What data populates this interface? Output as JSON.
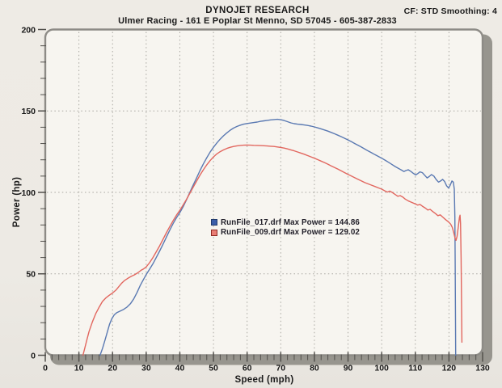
{
  "header": {
    "title": "DYNOJET RESEARCH",
    "subtitle": "Ulmer Racing - 161 E Poplar St Menno, SD 57045 - 605-387-2833",
    "correction": "CF: STD  Smoothing: 4"
  },
  "colors": {
    "paper": "#edeae4",
    "plot_bg": "#f7f5f0",
    "plot_border": "#8d8b86",
    "shadow": "#97958e",
    "grid": "#a8a6a0",
    "tick": "#52504c",
    "text": "#171717"
  },
  "chart_data": {
    "type": "line",
    "title": "",
    "xlabel": "Speed (mph)",
    "ylabel": "Power (hp)",
    "xlim": [
      0,
      130
    ],
    "ylim": [
      0,
      200
    ],
    "x_ticks": [
      0,
      10,
      20,
      30,
      40,
      50,
      60,
      70,
      80,
      90,
      100,
      110,
      120,
      130
    ],
    "y_ticks": [
      0,
      50,
      100,
      150,
      200
    ],
    "x_minor_step": 2,
    "y_minor_step": 10,
    "grid": {
      "vertical_every": 10,
      "horizontal_every": 50,
      "style": "dotted"
    },
    "legend_position": "center",
    "series": [
      {
        "name": "RunFile_017.drf",
        "label": "RunFile_017.drf Max Power = 144.86",
        "max_power": 144.86,
        "color": "#5a79b2",
        "swatch": "#3b5ea9",
        "swatch_border": "#223a6b",
        "points": [
          [
            16.3,
            0
          ],
          [
            17,
            4
          ],
          [
            17.7,
            9
          ],
          [
            18.4,
            14
          ],
          [
            19.1,
            19
          ],
          [
            19.8,
            22.5
          ],
          [
            20.5,
            24.8
          ],
          [
            21.3,
            26.2
          ],
          [
            22.3,
            27.2
          ],
          [
            23.3,
            28.2
          ],
          [
            24.3,
            29.6
          ],
          [
            25.3,
            31.6
          ],
          [
            26.3,
            34.6
          ],
          [
            27.3,
            38.6
          ],
          [
            28.2,
            42.8
          ],
          [
            29.1,
            46.2
          ],
          [
            30,
            49.5
          ],
          [
            31,
            52.8
          ],
          [
            32,
            56.2
          ],
          [
            33,
            60
          ],
          [
            34,
            64
          ],
          [
            35,
            68.2
          ],
          [
            36,
            72.5
          ],
          [
            37,
            76.8
          ],
          [
            38,
            80.8
          ],
          [
            39,
            84.4
          ],
          [
            40,
            87.6
          ],
          [
            41,
            91.2
          ],
          [
            42,
            95.6
          ],
          [
            43,
            100.1
          ],
          [
            44,
            104.6
          ],
          [
            45,
            109
          ],
          [
            46,
            113.4
          ],
          [
            47,
            117.5
          ],
          [
            48,
            121.3
          ],
          [
            49,
            124.7
          ],
          [
            50,
            127.7
          ],
          [
            51,
            130.3
          ],
          [
            52,
            132.7
          ],
          [
            53,
            134.8
          ],
          [
            54,
            136.6
          ],
          [
            55,
            138.2
          ],
          [
            56,
            139.5
          ],
          [
            57,
            140.5
          ],
          [
            58,
            141.3
          ],
          [
            59,
            141.9
          ],
          [
            60,
            142.3
          ],
          [
            61,
            142.6
          ],
          [
            62,
            142.9
          ],
          [
            63,
            143.2
          ],
          [
            64,
            143.6
          ],
          [
            65,
            143.9
          ],
          [
            66,
            144.2
          ],
          [
            67,
            144.5
          ],
          [
            68,
            144.7
          ],
          [
            69,
            144.86
          ],
          [
            70,
            144.6
          ],
          [
            71,
            144.1
          ],
          [
            72,
            143.4
          ],
          [
            73,
            142.7
          ],
          [
            74,
            142.2
          ],
          [
            75,
            141.9
          ],
          [
            76,
            141.7
          ],
          [
            77,
            141.4
          ],
          [
            78,
            141.1
          ],
          [
            79,
            140.7
          ],
          [
            80,
            140.2
          ],
          [
            81,
            139.6
          ],
          [
            82,
            139
          ],
          [
            83,
            138.3
          ],
          [
            84,
            137.6
          ],
          [
            85,
            136.8
          ],
          [
            86,
            136
          ],
          [
            87,
            135.1
          ],
          [
            88,
            134.2
          ],
          [
            89,
            133.2
          ],
          [
            90,
            132.2
          ],
          [
            91,
            131.1
          ],
          [
            92,
            130
          ],
          [
            93,
            128.9
          ],
          [
            94,
            127.8
          ],
          [
            95,
            126.6
          ],
          [
            96,
            125.4
          ],
          [
            97,
            124.3
          ],
          [
            98,
            123.2
          ],
          [
            99,
            122.1
          ],
          [
            100,
            121
          ],
          [
            101,
            119.8
          ],
          [
            102,
            118.5
          ],
          [
            103,
            117.2
          ],
          [
            104,
            115.9
          ],
          [
            105,
            114.7
          ],
          [
            106,
            113.6
          ],
          [
            106.6,
            112.8
          ],
          [
            107.2,
            113.4
          ],
          [
            107.9,
            113.9
          ],
          [
            108.6,
            113
          ],
          [
            109.4,
            111.7
          ],
          [
            110.1,
            110.7
          ],
          [
            110.7,
            111.5
          ],
          [
            111.4,
            112.6
          ],
          [
            112.1,
            112.1
          ],
          [
            112.8,
            110.5
          ],
          [
            113.5,
            108.9
          ],
          [
            114.1,
            109.7
          ],
          [
            114.8,
            110.9
          ],
          [
            115.5,
            110
          ],
          [
            116.2,
            107.9
          ],
          [
            116.9,
            106.3
          ],
          [
            117.5,
            107
          ],
          [
            118.1,
            108
          ],
          [
            118.7,
            106.7
          ],
          [
            119.3,
            104
          ],
          [
            119.9,
            102.7
          ],
          [
            120.4,
            104.5
          ],
          [
            120.9,
            107
          ],
          [
            121.3,
            106.3
          ],
          [
            121.6,
            102
          ],
          [
            121.75,
            85
          ],
          [
            121.85,
            55
          ],
          [
            121.95,
            20
          ],
          [
            122,
            0
          ]
        ]
      },
      {
        "name": "RunFile_009.drf",
        "label": "RunFile_009.drf Max Power = 129.02",
        "max_power": 129.02,
        "color": "#e2675f",
        "swatch": "#e97d74",
        "swatch_border": "#8e2a23",
        "points": [
          [
            11.2,
            0
          ],
          [
            11.7,
            4
          ],
          [
            12.3,
            9
          ],
          [
            13,
            14.5
          ],
          [
            14,
            20.5
          ],
          [
            15,
            25.5
          ],
          [
            16,
            29.5
          ],
          [
            17,
            33
          ],
          [
            18,
            35.2
          ],
          [
            19,
            36.8
          ],
          [
            20,
            38.2
          ],
          [
            21,
            40
          ],
          [
            21.8,
            42
          ],
          [
            22.6,
            44
          ],
          [
            23.5,
            45.8
          ],
          [
            24.5,
            47.2
          ],
          [
            25.5,
            48.4
          ],
          [
            26.5,
            49.4
          ],
          [
            27.5,
            50.6
          ],
          [
            28.5,
            52.2
          ],
          [
            29.2,
            53
          ],
          [
            30,
            54.2
          ],
          [
            31,
            56.8
          ],
          [
            32,
            60
          ],
          [
            33,
            63.5
          ],
          [
            34,
            67.2
          ],
          [
            35,
            71.2
          ],
          [
            36,
            75.2
          ],
          [
            37,
            79
          ],
          [
            38,
            82.6
          ],
          [
            39,
            86
          ],
          [
            40,
            89
          ],
          [
            41,
            92.3
          ],
          [
            42,
            95.8
          ],
          [
            43,
            99.5
          ],
          [
            44,
            103.3
          ],
          [
            45,
            107
          ],
          [
            46,
            110.6
          ],
          [
            47,
            113.9
          ],
          [
            48,
            116.9
          ],
          [
            49,
            119.5
          ],
          [
            50,
            121.8
          ],
          [
            51,
            123.6
          ],
          [
            52,
            125
          ],
          [
            53,
            126.1
          ],
          [
            54,
            127
          ],
          [
            55,
            127.7
          ],
          [
            56,
            128.2
          ],
          [
            57,
            128.6
          ],
          [
            58,
            128.85
          ],
          [
            59,
            129
          ],
          [
            60,
            129.02
          ],
          [
            61,
            129
          ],
          [
            62,
            128.9
          ],
          [
            63,
            128.85
          ],
          [
            64,
            128.75
          ],
          [
            65,
            128.65
          ],
          [
            66,
            128.5
          ],
          [
            67,
            128.35
          ],
          [
            68,
            128.2
          ],
          [
            69,
            127.9
          ],
          [
            70,
            127.6
          ],
          [
            71,
            127.2
          ],
          [
            72,
            126.7
          ],
          [
            73,
            126.1
          ],
          [
            74,
            125.5
          ],
          [
            75,
            124.8
          ],
          [
            76,
            124.1
          ],
          [
            77,
            123.4
          ],
          [
            78,
            122.6
          ],
          [
            79,
            121.8
          ],
          [
            80,
            121
          ],
          [
            81,
            120.1
          ],
          [
            82,
            119.2
          ],
          [
            83,
            118.3
          ],
          [
            84,
            117.3
          ],
          [
            85,
            116.3
          ],
          [
            86,
            115.3
          ],
          [
            87,
            114.3
          ],
          [
            88,
            113.2
          ],
          [
            89,
            112.1
          ],
          [
            90,
            111
          ],
          [
            91,
            110
          ],
          [
            92,
            109
          ],
          [
            93,
            108
          ],
          [
            94,
            107
          ],
          [
            95,
            106
          ],
          [
            96,
            105.2
          ],
          [
            97,
            104.4
          ],
          [
            98,
            103.6
          ],
          [
            99,
            102.8
          ],
          [
            100,
            102
          ],
          [
            101,
            100.9
          ],
          [
            101.7,
            100.2
          ],
          [
            102.4,
            100.8
          ],
          [
            103.1,
            100
          ],
          [
            104,
            98.7
          ],
          [
            104.8,
            97.6
          ],
          [
            105.5,
            98
          ],
          [
            106.2,
            97.2
          ],
          [
            107,
            95.9
          ],
          [
            108,
            94.7
          ],
          [
            109,
            93.8
          ],
          [
            110,
            92.9
          ],
          [
            110.7,
            92.2
          ],
          [
            111.4,
            92.6
          ],
          [
            112.1,
            91.5
          ],
          [
            113,
            90.3
          ],
          [
            113.7,
            89.2
          ],
          [
            114.4,
            89.6
          ],
          [
            115.1,
            88.4
          ],
          [
            116,
            87
          ],
          [
            116.7,
            85.7
          ],
          [
            117.4,
            86.2
          ],
          [
            118.1,
            84.9
          ],
          [
            119,
            83.3
          ],
          [
            119.8,
            82
          ],
          [
            120.5,
            80.5
          ],
          [
            121,
            78.5
          ],
          [
            121.4,
            75.5
          ],
          [
            121.8,
            72
          ],
          [
            122.1,
            70.5
          ],
          [
            122.4,
            73
          ],
          [
            122.8,
            79
          ],
          [
            123.1,
            84.5
          ],
          [
            123.3,
            86
          ],
          [
            123.45,
            81
          ],
          [
            123.6,
            60
          ],
          [
            123.75,
            30
          ],
          [
            123.85,
            8
          ]
        ]
      }
    ]
  }
}
